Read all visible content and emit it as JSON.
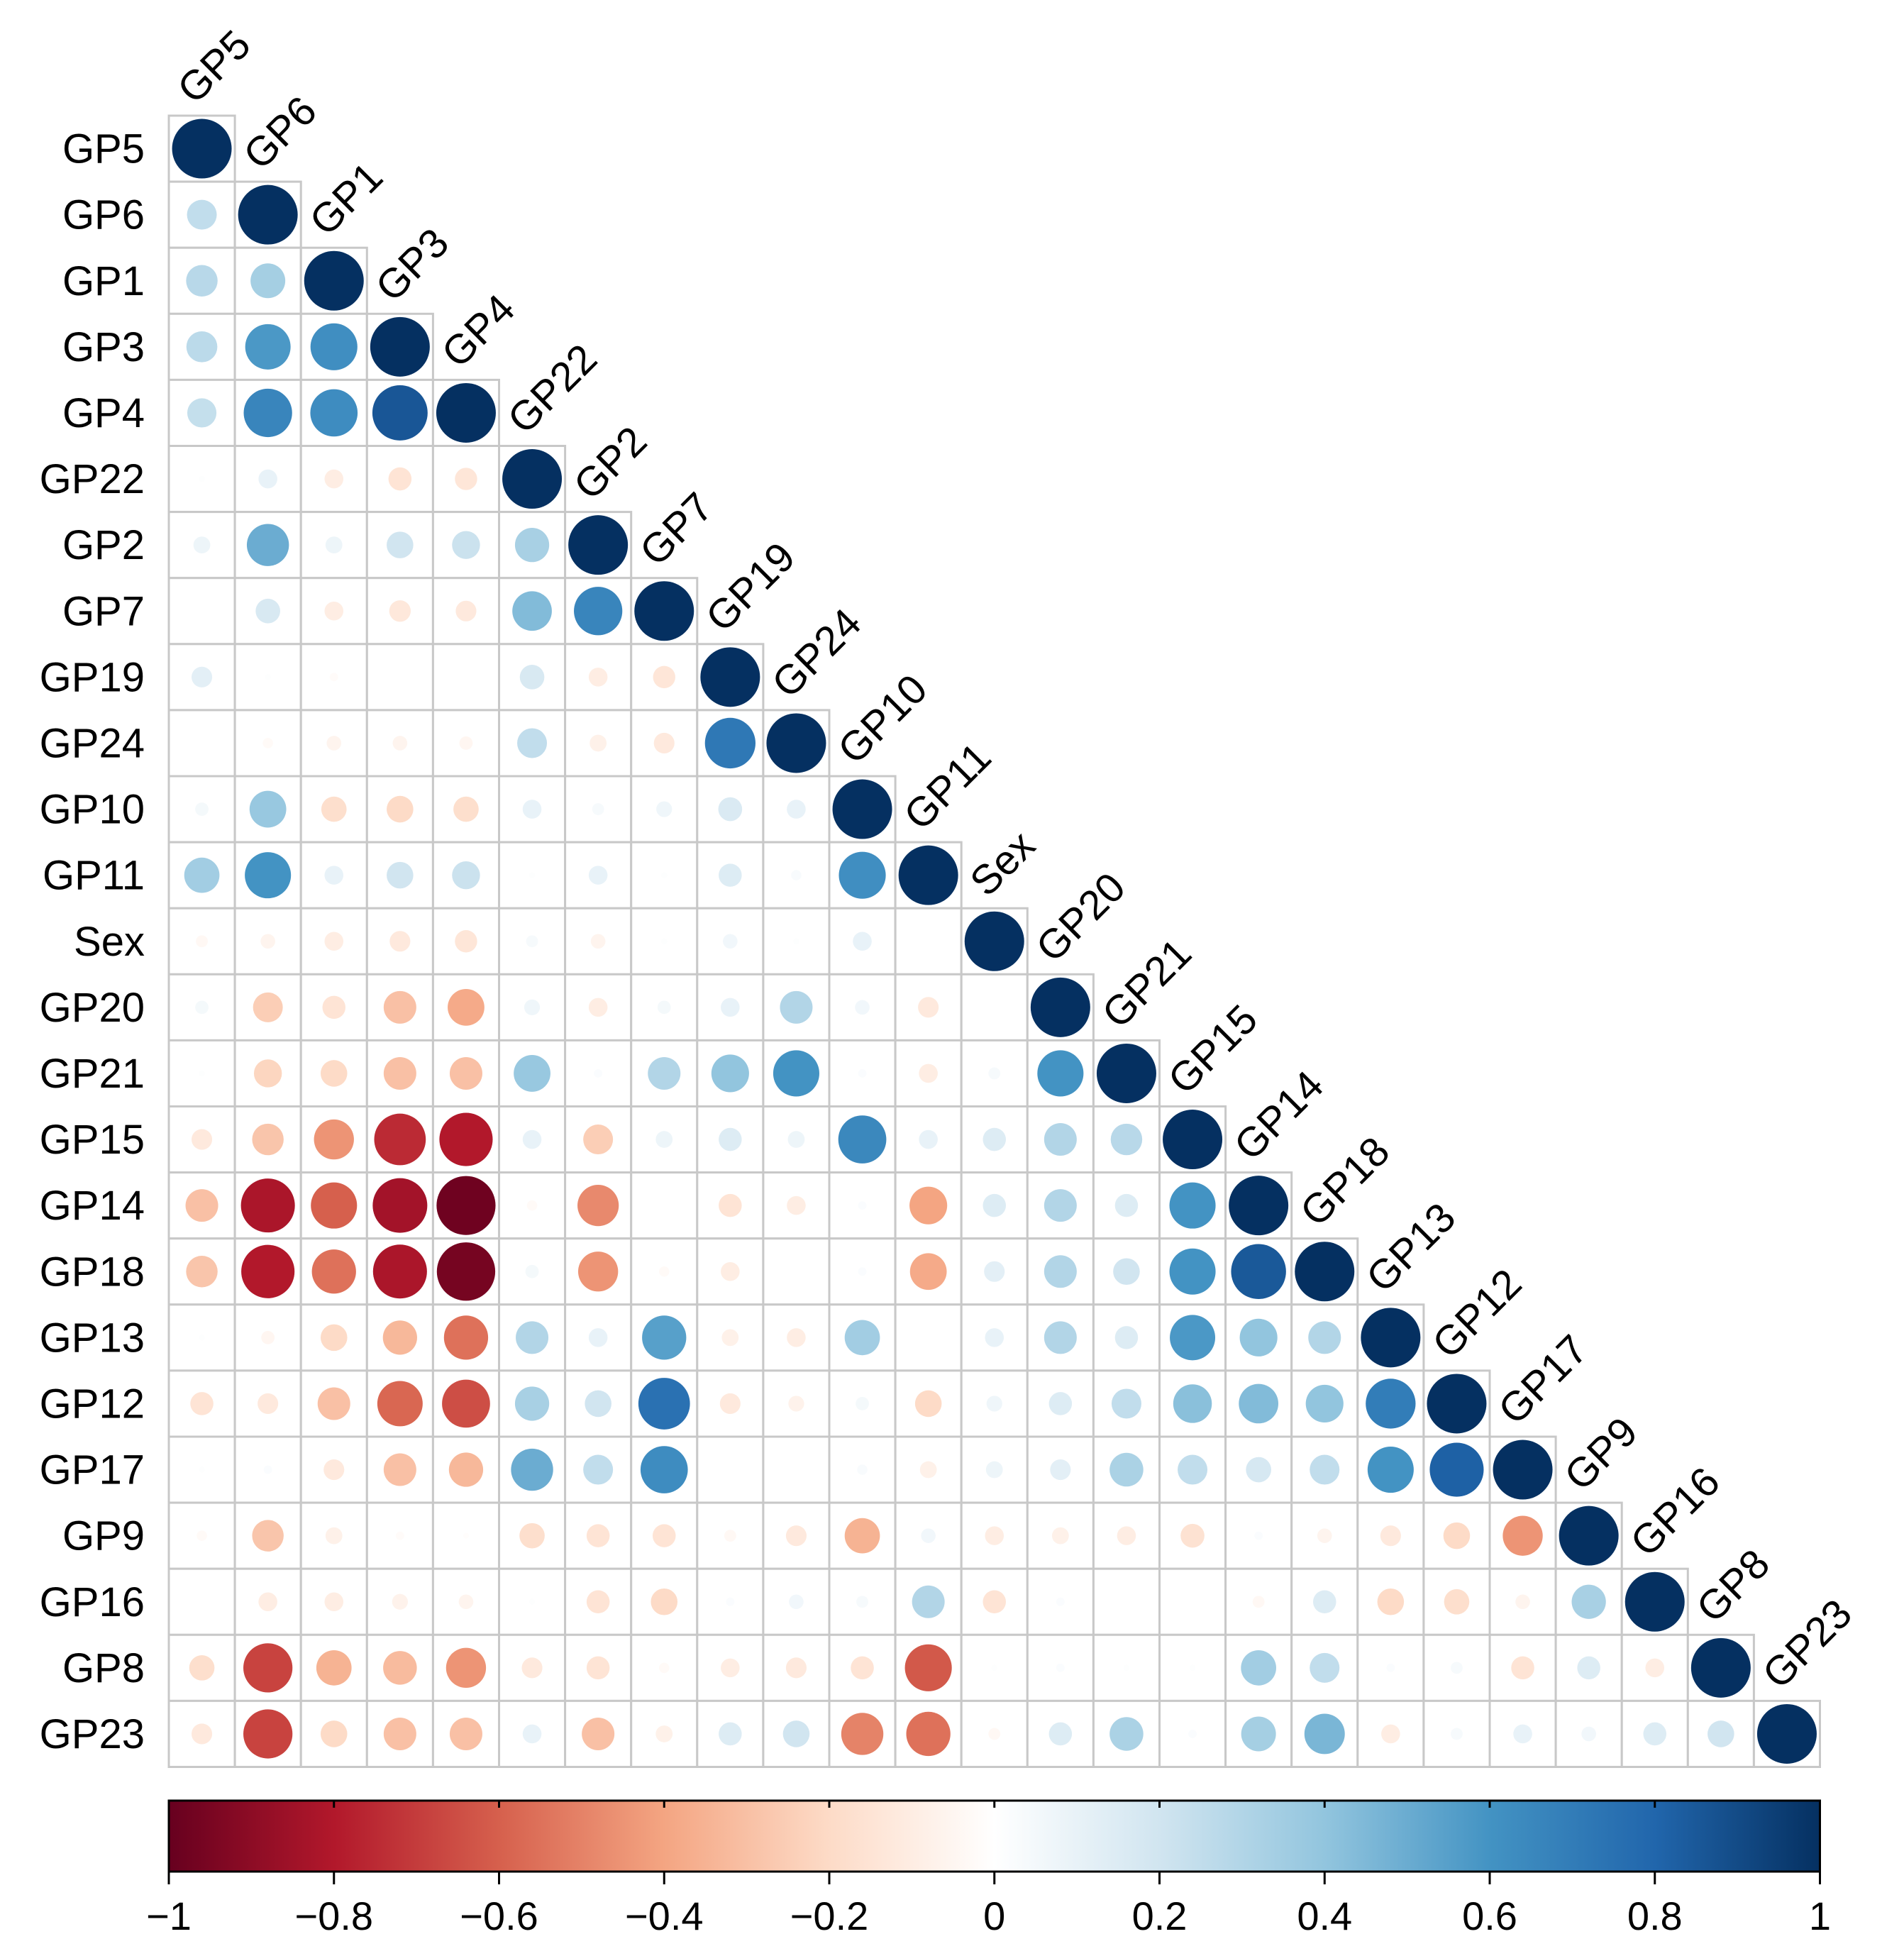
{
  "chart_data": {
    "type": "heatmap",
    "style": "correlation-circles-lower-triangle",
    "title": "",
    "variables": [
      "GP5",
      "GP6",
      "GP1",
      "GP3",
      "GP4",
      "GP22",
      "GP2",
      "GP7",
      "GP19",
      "GP24",
      "GP10",
      "GP11",
      "Sex",
      "GP20",
      "GP21",
      "GP15",
      "GP14",
      "GP18",
      "GP13",
      "GP12",
      "GP17",
      "GP9",
      "GP16",
      "GP8",
      "GP23"
    ],
    "matrix": [
      [
        1
      ],
      [
        0.25,
        1
      ],
      [
        0.28,
        0.34,
        1
      ],
      [
        0.27,
        0.58,
        0.62,
        1
      ],
      [
        0.24,
        0.66,
        0.63,
        0.86,
        1
      ],
      [
        0.01,
        0.1,
        -0.1,
        -0.15,
        -0.14,
        1
      ],
      [
        0.08,
        0.5,
        0.08,
        0.2,
        0.22,
        0.33,
        1
      ],
      [
        0.0,
        0.17,
        -0.1,
        -0.13,
        -0.12,
        0.44,
        0.66,
        1
      ],
      [
        0.12,
        0.01,
        -0.02,
        0.0,
        0.0,
        0.17,
        -0.1,
        -0.14,
        1
      ],
      [
        0.0,
        -0.03,
        -0.06,
        -0.06,
        -0.05,
        0.25,
        -0.08,
        -0.12,
        0.72,
        1
      ],
      [
        0.05,
        0.38,
        -0.18,
        -0.2,
        -0.18,
        0.1,
        0.04,
        0.07,
        0.16,
        0.1,
        1
      ],
      [
        0.35,
        0.6,
        0.1,
        0.2,
        0.22,
        0.01,
        0.1,
        0.01,
        0.15,
        0.03,
        0.62,
        1
      ],
      [
        -0.04,
        -0.06,
        -0.1,
        -0.12,
        -0.14,
        0.04,
        -0.06,
        0.01,
        0.06,
        0.01,
        0.1,
        0.0,
        1
      ],
      [
        0.05,
        -0.25,
        -0.15,
        -0.3,
        -0.38,
        0.07,
        -0.1,
        0.05,
        0.1,
        0.3,
        0.06,
        -0.12,
        0.0,
        1
      ],
      [
        0.01,
        -0.22,
        -0.2,
        -0.3,
        -0.3,
        0.38,
        0.02,
        0.3,
        0.4,
        0.6,
        0.02,
        -0.1,
        0.04,
        0.6,
        1
      ],
      [
        -0.12,
        -0.28,
        -0.45,
        -0.75,
        -0.8,
        0.1,
        -0.25,
        0.08,
        0.15,
        0.08,
        0.65,
        0.1,
        0.15,
        0.3,
        0.28,
        1
      ],
      [
        -0.3,
        -0.82,
        -0.6,
        -0.84,
        -0.98,
        -0.03,
        -0.48,
        0.0,
        -0.15,
        -0.1,
        0.02,
        -0.4,
        0.15,
        0.3,
        0.15,
        0.6,
        1
      ],
      [
        -0.28,
        -0.8,
        -0.55,
        -0.82,
        -0.96,
        0.05,
        -0.45,
        -0.03,
        -0.1,
        0.0,
        0.02,
        -0.38,
        0.12,
        0.3,
        0.2,
        0.6,
        0.85,
        1
      ],
      [
        0.01,
        -0.05,
        -0.2,
        -0.33,
        -0.55,
        0.3,
        0.1,
        0.55,
        -0.08,
        -0.1,
        0.35,
        0.0,
        0.1,
        0.3,
        0.15,
        0.58,
        0.4,
        0.3,
        1
      ],
      [
        -0.15,
        -0.12,
        -0.3,
        -0.58,
        -0.65,
        0.33,
        0.2,
        0.75,
        -0.12,
        -0.07,
        0.05,
        -0.2,
        0.07,
        0.15,
        0.25,
        0.42,
        0.44,
        0.4,
        0.7,
        1
      ],
      [
        0.01,
        0.02,
        -0.12,
        -0.3,
        -0.33,
        0.5,
        0.25,
        0.63,
        0.0,
        0.0,
        0.03,
        -0.08,
        0.08,
        0.12,
        0.32,
        0.25,
        0.18,
        0.25,
        0.6,
        0.82,
        1
      ],
      [
        -0.03,
        -0.28,
        -0.08,
        -0.02,
        -0.01,
        -0.18,
        -0.15,
        -0.15,
        -0.04,
        -0.12,
        -0.35,
        0.06,
        -0.1,
        -0.08,
        -0.1,
        -0.16,
        0.02,
        -0.06,
        -0.12,
        -0.2,
        -0.45,
        1
      ],
      [
        0.0,
        -0.1,
        -0.1,
        -0.07,
        -0.06,
        0.01,
        -0.15,
        -0.2,
        0.02,
        0.06,
        0.04,
        0.3,
        -0.15,
        0.02,
        0.0,
        0.0,
        -0.04,
        0.15,
        -0.2,
        -0.18,
        -0.06,
        0.33,
        1
      ],
      [
        -0.18,
        -0.68,
        -0.35,
        -0.32,
        -0.45,
        -0.12,
        -0.15,
        -0.03,
        -0.1,
        -0.12,
        -0.15,
        -0.62,
        0.01,
        0.02,
        0.01,
        0.01,
        0.35,
        0.25,
        0.02,
        0.04,
        -0.15,
        0.15,
        -0.1,
        1
      ],
      [
        -0.12,
        -0.68,
        -0.2,
        -0.3,
        -0.3,
        0.1,
        -0.3,
        -0.08,
        0.15,
        0.2,
        -0.5,
        -0.55,
        -0.04,
        0.15,
        0.32,
        0.02,
        0.34,
        0.46,
        -0.1,
        0.04,
        0.1,
        0.06,
        0.15,
        0.2,
        1
      ]
    ],
    "colorbar": {
      "range": [
        -1,
        1
      ],
      "ticks": [
        -1,
        -0.8,
        -0.6,
        -0.4,
        -0.2,
        0,
        0.2,
        0.4,
        0.6,
        0.8,
        1
      ],
      "tick_labels": [
        "−1",
        "−0.8",
        "−0.6",
        "−0.4",
        "−0.2",
        "0",
        "0.2",
        "0.4",
        "0.6",
        "0.8",
        "1"
      ],
      "palette": [
        "#67001F",
        "#B2182B",
        "#D6604D",
        "#F4A582",
        "#FDDBC7",
        "#FFFFFF",
        "#D1E5F0",
        "#92C5DE",
        "#4393C3",
        "#2166AC",
        "#053061"
      ]
    },
    "grid_color": "#c8c8c8"
  }
}
